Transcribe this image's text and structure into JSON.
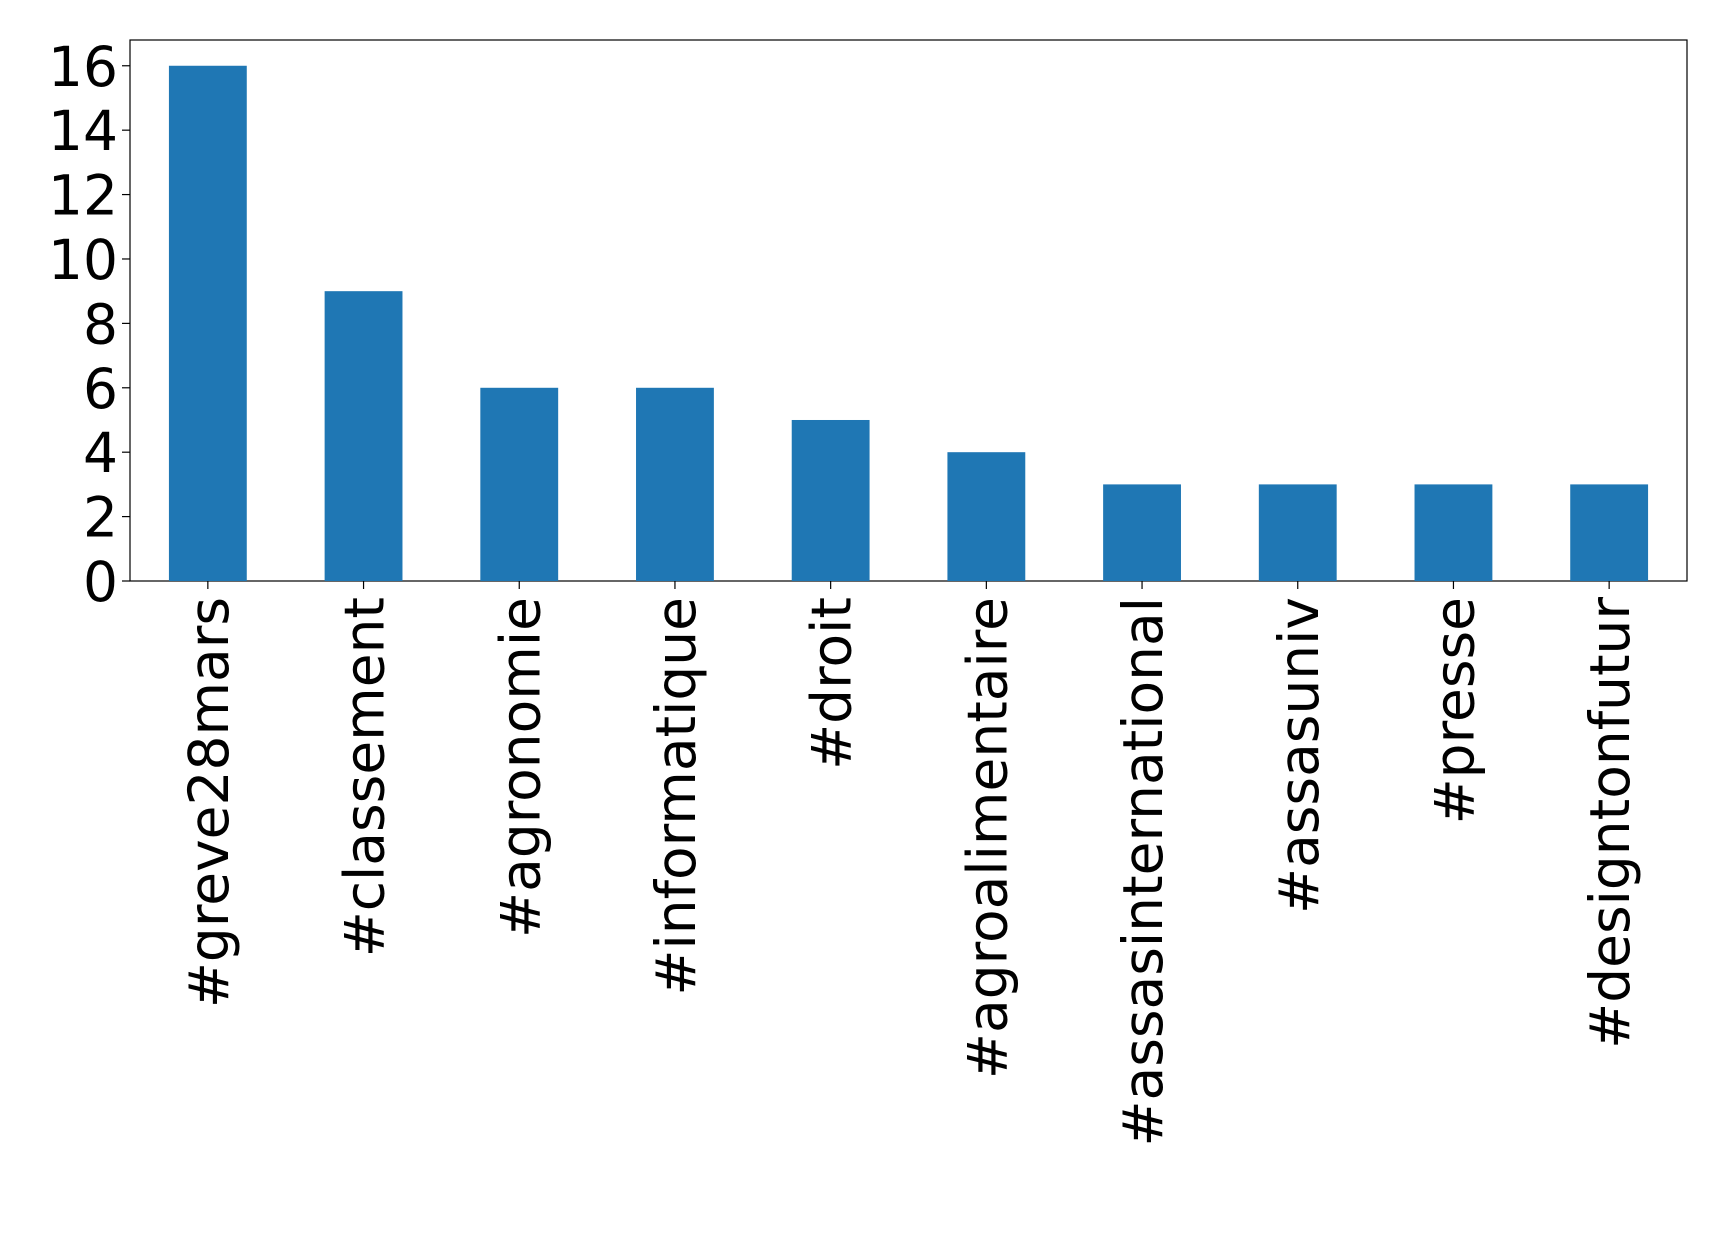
{
  "chart_data": {
    "type": "bar",
    "categories": [
      "#greve28mars",
      "#classement",
      "#agronomie",
      "#informatique",
      "#droit",
      "#agroalimentaire",
      "#assasinternational",
      "#assasuniv",
      "#presse",
      "#designtonfutur"
    ],
    "values": [
      16,
      9,
      6,
      6,
      5,
      4,
      3,
      3,
      3,
      3
    ],
    "color": "#1f77b4",
    "ylim": [
      0,
      16.8
    ],
    "yticks": [
      0,
      2,
      4,
      6,
      8,
      10,
      12,
      14,
      16
    ],
    "grid": false
  }
}
